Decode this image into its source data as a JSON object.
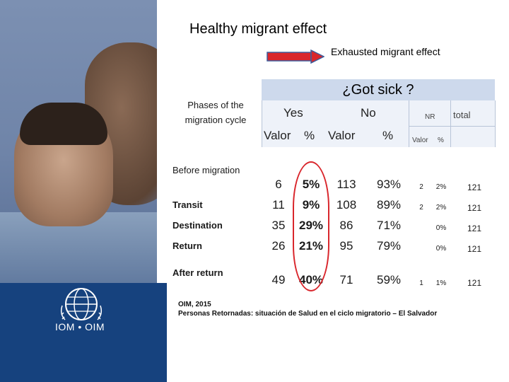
{
  "title": "Healthy migrant effect",
  "subtitle": "Exhausted migrant effect",
  "colors": {
    "sidebar_blue": "#16427e",
    "header_blue": "#cdd9ec",
    "arrow_red": "#d9262c",
    "arrow_blue": "#3c5f9e",
    "highlight_oval": "#d9262c"
  },
  "logo": {
    "text": "IOM • OIM",
    "icon": "iom-globe-logo"
  },
  "table": {
    "row_header": "Phases of the migration cycle",
    "main_header": "¿Got sick ?",
    "groups": {
      "yes": "Yes",
      "no": "No",
      "nr": "NR",
      "total": "total"
    },
    "subheaders": {
      "yes_valor": "Valor",
      "yes_pct": "%",
      "no_valor": "Valor",
      "no_pct": "%",
      "nr_valor": "Valor",
      "nr_pct": "%"
    },
    "rows": [
      {
        "phase": "Before migration",
        "yes_valor": "6",
        "yes_pct": "5%",
        "no_valor": "113",
        "no_pct": "93%",
        "nr_valor": "2",
        "nr_pct": "2%",
        "total": "121"
      },
      {
        "phase": "Transit",
        "yes_valor": "11",
        "yes_pct": "9%",
        "no_valor": "108",
        "no_pct": "89%",
        "nr_valor": "2",
        "nr_pct": "2%",
        "total": "121"
      },
      {
        "phase": "Destination",
        "yes_valor": "35",
        "yes_pct": "29%",
        "no_valor": "86",
        "no_pct": "71%",
        "nr_valor": "",
        "nr_pct": "0%",
        "total": "121"
      },
      {
        "phase": "Return",
        "yes_valor": "26",
        "yes_pct": "21%",
        "no_valor": "95",
        "no_pct": "79%",
        "nr_valor": "",
        "nr_pct": "0%",
        "total": "121"
      },
      {
        "phase": "After return",
        "yes_valor": "49",
        "yes_pct": "40%",
        "no_valor": "71",
        "no_pct": "59%",
        "nr_valor": "1",
        "nr_pct": "1%",
        "total": "121"
      }
    ]
  },
  "source": {
    "line1": "OIM, 2015",
    "line2": "Personas Retornadas: situación de Salud en el ciclo migratorio – El Salvador"
  }
}
